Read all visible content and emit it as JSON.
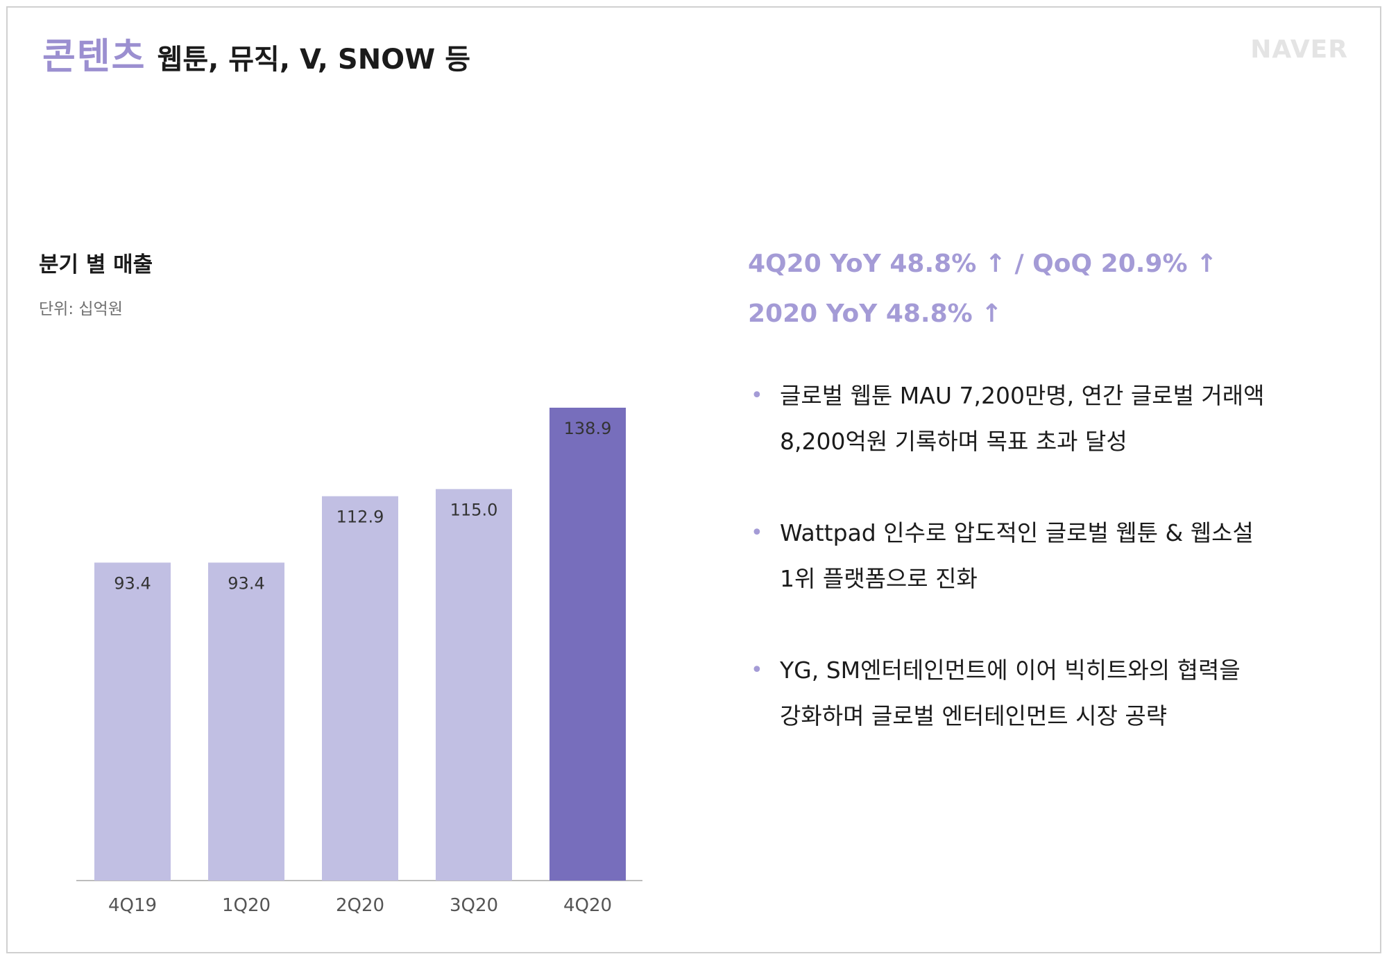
{
  "header": {
    "title": "콘텐츠",
    "subtitle": "웹툰, 뮤직, V, SNOW 등",
    "brand": "NAVER"
  },
  "chart_data": {
    "type": "bar",
    "title": "분기 별 매출",
    "unit_label": "단위: 십억원",
    "categories": [
      "4Q19",
      "1Q20",
      "2Q20",
      "3Q20",
      "4Q20"
    ],
    "values": [
      93.4,
      93.4,
      112.9,
      115.0,
      138.9
    ],
    "value_labels": [
      "93.4",
      "93.4",
      "112.9",
      "115.0",
      "138.9"
    ],
    "colors": [
      "#c1bfe3",
      "#c1bfe3",
      "#c1bfe3",
      "#c1bfe3",
      "#776ebc"
    ],
    "highlight_index": 4,
    "grid": false,
    "legend": "none"
  },
  "kpis": [
    "4Q20 YoY 48.8% ↑ / QoQ 20.9% ↑",
    "2020 YoY 48.8% ↑"
  ],
  "bullets": [
    {
      "lines": [
        "글로벌 웹툰 MAU 7,200만명, 연간 글로벌 거래액",
        "8,200억원 기록하며 목표 초과 달성"
      ]
    },
    {
      "lines": [
        "Wattpad 인수로 압도적인 글로벌 웹툰 & 웹소설",
        "1위 플랫폼으로 진화"
      ]
    },
    {
      "lines": [
        "YG, SM엔터테인먼트에 이어 빅히트와의 협력을",
        "강화하며 글로벌 엔터테인먼트 시장 공략"
      ]
    }
  ],
  "bullet_marker": "•",
  "colors": {
    "accent": "#9b8fd0",
    "bar_light": "#c1bfe3",
    "bar_highlight": "#776ebc",
    "text": "#1b1b1b"
  }
}
